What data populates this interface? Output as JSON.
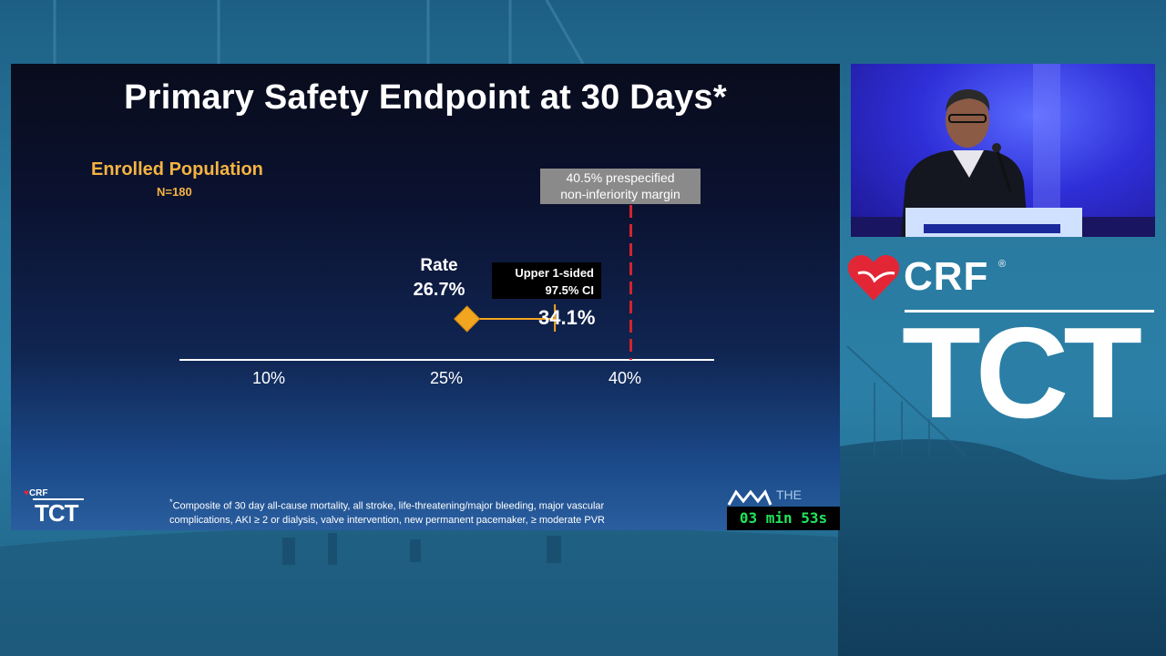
{
  "slide": {
    "title": "Primary Safety Endpoint at 30 Days*",
    "population_label": "Enrolled Population",
    "population_n": "N=180",
    "margin_note_line1": "40.5% prespecified",
    "margin_note_line2": "non-inferiority margin",
    "rate_label": "Rate",
    "rate_value": "26.7%",
    "ci_label_line1": "Upper 1-sided",
    "ci_label_line2": "97.5% CI",
    "ci_value": "34.1%",
    "axis_ticks": [
      "10%",
      "25%",
      "40%"
    ],
    "footnote_mark": "*",
    "footnote_line1": "Composite of 30 day all-cause mortality, all stroke, life-threatening/major bleeding, major vascular",
    "footnote_line2": "complications, AKI ≥ 2 or dialysis, valve intervention, new permanent pacemaker, ≥ moderate PVR",
    "logo_crf": "CRF",
    "logo_tct": "TCT",
    "corner_logo_text": "THE"
  },
  "chart_data": {
    "type": "scatter",
    "x_axis_ticks": [
      10,
      25,
      40
    ],
    "point": {
      "name": "Rate",
      "x": 26.7
    },
    "ci_upper": 34.1,
    "margin": 40.5,
    "colors": {
      "point": "#f2a51f",
      "ci_line": "#f2a51f",
      "margin_line": "#d3242f"
    }
  },
  "timer": {
    "text": "03 min 53s"
  },
  "brand": {
    "crf": "CRF",
    "registered": "®",
    "tct": "TCT",
    "heart_color": "#e32636"
  }
}
